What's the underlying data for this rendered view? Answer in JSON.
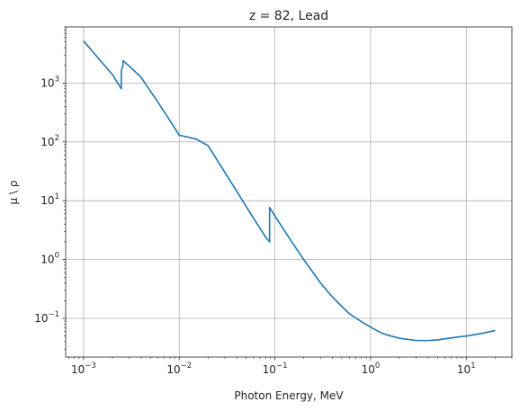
{
  "chart_data": {
    "type": "line",
    "title": "z = 82, Lead",
    "xlabel": "Photon Energy, MeV",
    "ylabel": "μ \\ ρ",
    "xscale": "log",
    "yscale": "log",
    "xlim": [
      0.00065,
      30
    ],
    "ylim": [
      0.022,
      9000
    ],
    "grid": true,
    "line_color": "#1f77b4",
    "x_ticks": [
      {
        "value": 0.001,
        "base": "10",
        "exp": "−3"
      },
      {
        "value": 0.01,
        "base": "10",
        "exp": "−2"
      },
      {
        "value": 0.1,
        "base": "10",
        "exp": "−1"
      },
      {
        "value": 1,
        "base": "10",
        "exp": "0"
      },
      {
        "value": 10,
        "base": "10",
        "exp": "1"
      }
    ],
    "y_ticks": [
      {
        "value": 0.1,
        "base": "10",
        "exp": "−1"
      },
      {
        "value": 1,
        "base": "10",
        "exp": "0"
      },
      {
        "value": 10,
        "base": "10",
        "exp": "1"
      },
      {
        "value": 100,
        "base": "10",
        "exp": "2"
      },
      {
        "value": 1000,
        "base": "10",
        "exp": "3"
      }
    ],
    "series": [
      {
        "x": [
          0.001,
          0.0015,
          0.002,
          0.00248,
          0.00248,
          0.0025,
          0.00258,
          0.00258,
          0.003,
          0.004,
          0.005,
          0.006,
          0.008,
          0.01,
          0.015,
          0.02,
          0.03,
          0.04,
          0.05,
          0.06,
          0.08,
          0.088,
          0.088,
          0.1,
          0.15,
          0.2,
          0.3,
          0.4,
          0.5,
          0.6,
          0.8,
          1.0,
          1.25,
          1.5,
          2.0,
          3.0,
          4.0,
          5.0,
          6.0,
          8.0,
          10.0,
          15.0,
          20.0
        ],
        "y": [
          5200,
          2400,
          1400,
          800,
          1550,
          1700,
          1950,
          2400,
          1950,
          1250,
          730,
          470,
          230,
          130,
          112,
          86.4,
          30.3,
          14.4,
          8.0,
          5.0,
          2.4,
          2.0,
          7.7,
          5.5,
          2.0,
          1.0,
          0.4,
          0.23,
          0.16,
          0.12,
          0.088,
          0.071,
          0.058,
          0.052,
          0.046,
          0.042,
          0.042,
          0.043,
          0.045,
          0.048,
          0.05,
          0.056,
          0.062
        ]
      }
    ]
  }
}
